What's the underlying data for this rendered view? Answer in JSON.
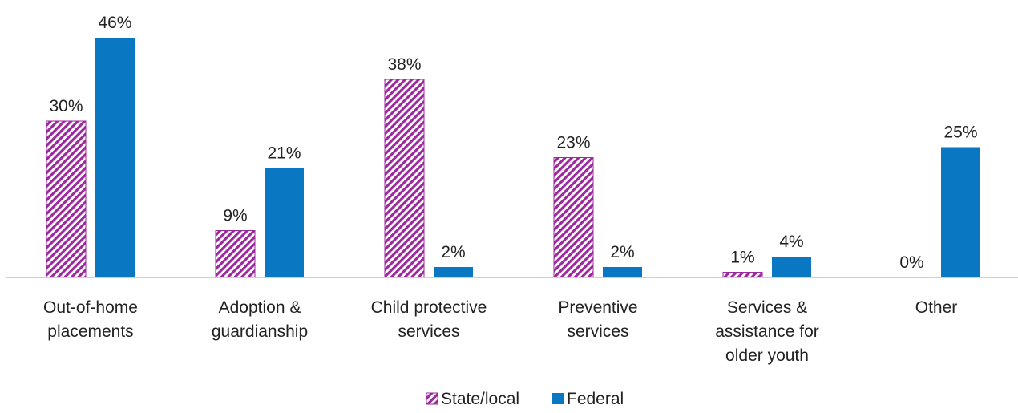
{
  "chart_data": {
    "type": "bar",
    "categories": [
      [
        "Out-of-home",
        "placements"
      ],
      [
        "Adoption &",
        "guardianship"
      ],
      [
        "Child protective",
        "services"
      ],
      [
        "Preventive",
        "services"
      ],
      [
        "Services &",
        "assistance for",
        "older youth"
      ],
      [
        "Other"
      ]
    ],
    "series": [
      {
        "name": "State/local",
        "values": [
          30,
          9,
          38,
          23,
          1,
          0
        ],
        "labels": [
          "30%",
          "9%",
          "38%",
          "23%",
          "1%",
          "0%"
        ],
        "color": "#9B2A9C",
        "pattern": "diagonal-hatch"
      },
      {
        "name": "Federal",
        "values": [
          46,
          21,
          2,
          2,
          4,
          25
        ],
        "labels": [
          "46%",
          "21%",
          "2%",
          "2%",
          "4%",
          "25%"
        ],
        "color": "#0A77C2",
        "pattern": "solid"
      }
    ],
    "title": "",
    "xlabel": "",
    "ylabel": "",
    "ylim": [
      0,
      46
    ],
    "grid": false,
    "legend": "bottom-center"
  }
}
